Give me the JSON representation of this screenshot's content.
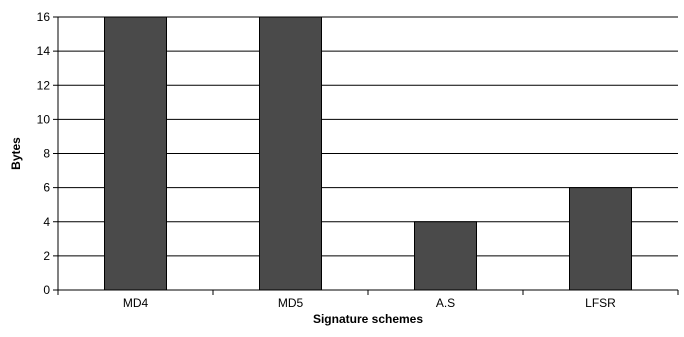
{
  "chart_data": {
    "type": "bar",
    "title": "",
    "xlabel": "Signature schemes",
    "ylabel": "Bytes",
    "categories": [
      "MD4",
      "MD5",
      "A.S",
      "LFSR"
    ],
    "values": [
      16,
      16,
      4,
      6
    ],
    "ylim": [
      0,
      16
    ],
    "yticks": [
      0,
      2,
      4,
      6,
      8,
      10,
      12,
      14,
      16
    ],
    "grid": true,
    "legend": "none",
    "bar_color": "#4a4a4a",
    "bar_edge_color": "#000000",
    "grid_color": "#000000"
  }
}
